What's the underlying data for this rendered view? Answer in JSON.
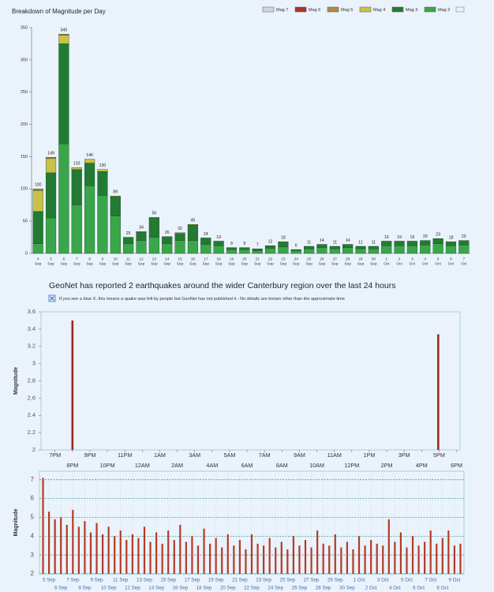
{
  "chart_data": [
    {
      "type": "bar",
      "stacked": true,
      "title": "Breakdown of Magnitude per Day",
      "categories": [
        [
          "4",
          "Sep"
        ],
        [
          "5",
          "Sep"
        ],
        [
          "6",
          "Sep"
        ],
        [
          "7",
          "Sep"
        ],
        [
          "8",
          "Sep"
        ],
        [
          "9",
          "Sep"
        ],
        [
          "10",
          "Sep"
        ],
        [
          "11",
          "Sep"
        ],
        [
          "12",
          "Sep"
        ],
        [
          "13",
          "Sep"
        ],
        [
          "14",
          "Sep"
        ],
        [
          "15",
          "Sep"
        ],
        [
          "16",
          "Sep"
        ],
        [
          "17",
          "Sep"
        ],
        [
          "18",
          "Sep"
        ],
        [
          "19",
          "Sep"
        ],
        [
          "20",
          "Sep"
        ],
        [
          "21",
          "Sep"
        ],
        [
          "22",
          "Sep"
        ],
        [
          "23",
          "Sep"
        ],
        [
          "24",
          "Sep"
        ],
        [
          "25",
          "Sep"
        ],
        [
          "26",
          "Sep"
        ],
        [
          "27",
          "Sep"
        ],
        [
          "28",
          "Sep"
        ],
        [
          "29",
          "Sep"
        ],
        [
          "30",
          "Sep"
        ],
        [
          "1",
          "Oct"
        ],
        [
          "2",
          "Oct"
        ],
        [
          "3",
          "Oct"
        ],
        [
          "4",
          "Oct"
        ],
        [
          "5",
          "Oct"
        ],
        [
          "6",
          "Oct"
        ],
        [
          "7",
          "Oct"
        ]
      ],
      "series": [
        {
          "name": "Mag 2",
          "color": "#3aa64a",
          "values": [
            15,
            55,
            170,
            75,
            105,
            90,
            58,
            15,
            20,
            25,
            15,
            20,
            20,
            14,
            12,
            6,
            6,
            4,
            8,
            10,
            4,
            7,
            9,
            7,
            9,
            7,
            7,
            12,
            12,
            12,
            13,
            15,
            12,
            13
          ]
        },
        {
          "name": "Mag 3",
          "color": "#237a33",
          "values": [
            50,
            70,
            155,
            55,
            35,
            37,
            30,
            10,
            13,
            30,
            11,
            11,
            24,
            10,
            7,
            3,
            3,
            3,
            4,
            8,
            2,
            4,
            5,
            4,
            5,
            4,
            4,
            7,
            7,
            7,
            7,
            8,
            6,
            7
          ]
        },
        {
          "name": "Mag 4",
          "color": "#c9c24a",
          "values": [
            32,
            22,
            13,
            3,
            6,
            3,
            1,
            0,
            1,
            1,
            0,
            1,
            1,
            0,
            0,
            0,
            0,
            0,
            0,
            0,
            0,
            0,
            0,
            0,
            0,
            0,
            0,
            0,
            0,
            0,
            0,
            0,
            0,
            0
          ]
        },
        {
          "name": "Mag 5",
          "color": "#b08a3c",
          "values": [
            3,
            2,
            2,
            0,
            0,
            0,
            0,
            0,
            0,
            0,
            0,
            0,
            0,
            0,
            0,
            0,
            0,
            0,
            0,
            0,
            0,
            0,
            0,
            0,
            0,
            0,
            0,
            0,
            0,
            0,
            0,
            0,
            0,
            0
          ]
        },
        {
          "name": "Mag 6",
          "color": "#a8352a",
          "values": [
            0,
            0,
            0,
            0,
            0,
            0,
            0,
            0,
            0,
            0,
            0,
            0,
            0,
            0,
            0,
            0,
            0,
            0,
            0,
            0,
            0,
            0,
            0,
            0,
            0,
            0,
            0,
            0,
            0,
            0,
            0,
            0,
            0,
            0
          ]
        },
        {
          "name": "Mag 7",
          "color": "#d4d8dc",
          "values": [
            0,
            0,
            0,
            0,
            0,
            0,
            0,
            0,
            0,
            0,
            0,
            0,
            0,
            0,
            0,
            0,
            0,
            0,
            0,
            0,
            0,
            0,
            0,
            0,
            0,
            0,
            0,
            0,
            0,
            0,
            0,
            0,
            0,
            0
          ]
        }
      ],
      "totals": [
        100,
        149,
        340,
        133,
        146,
        130,
        89,
        25,
        34,
        56,
        26,
        32,
        45,
        24,
        19,
        9,
        9,
        7,
        12,
        18,
        6,
        11,
        14,
        11,
        14,
        11,
        11,
        19,
        19,
        19,
        20,
        23,
        18,
        20
      ],
      "ylim": [
        0,
        350
      ],
      "yticks": [
        0,
        50,
        100,
        150,
        200,
        250,
        300,
        350
      ],
      "legend": "top-right"
    },
    {
      "type": "spike",
      "title": "GeoNet has reported 2 earthquakes around the wider Canterbury region over the last 24 hours",
      "note": "If you see a blue X, this means a quake was felt by people but GeoNet has not published it - No details are known other than the approximate time",
      "ylabel": "Magnitude",
      "color": "#a0281e",
      "x": [
        20.0,
        40.95
      ],
      "values": [
        3.5,
        3.34
      ],
      "xlim": [
        18.2,
        42.2
      ],
      "ylim": [
        2,
        3.6
      ],
      "yticks": [
        2,
        2.2,
        2.4,
        2.6,
        2.8,
        3,
        3.2,
        3.4,
        3.6
      ],
      "xticks": [
        {
          "value": 19,
          "label": "7PM"
        },
        {
          "value": 20,
          "label": "8PM"
        },
        {
          "value": 21,
          "label": "9PM"
        },
        {
          "value": 22,
          "label": "10PM"
        },
        {
          "value": 23,
          "label": "11PM"
        },
        {
          "value": 24,
          "label": "12AM"
        },
        {
          "value": 25,
          "label": "1AM"
        },
        {
          "value": 26,
          "label": "2AM"
        },
        {
          "value": 27,
          "label": "3AM"
        },
        {
          "value": 28,
          "label": "4AM"
        },
        {
          "value": 29,
          "label": "5AM"
        },
        {
          "value": 30,
          "label": "6AM"
        },
        {
          "value": 31,
          "label": "7AM"
        },
        {
          "value": 32,
          "label": "8AM"
        },
        {
          "value": 33,
          "label": "9AM"
        },
        {
          "value": 34,
          "label": "10AM"
        },
        {
          "value": 35,
          "label": "11AM"
        },
        {
          "value": 36,
          "label": "12PM"
        },
        {
          "value": 37,
          "label": "1PM"
        },
        {
          "value": 38,
          "label": "2PM"
        },
        {
          "value": 39,
          "label": "3PM"
        },
        {
          "value": 40,
          "label": "4PM"
        },
        {
          "value": 41,
          "label": "5PM"
        },
        {
          "value": 42,
          "label": "6PM"
        }
      ],
      "grid": false
    },
    {
      "type": "spike",
      "ylabel": "Magnitude",
      "color": "#b53a22",
      "x": [
        4.5,
        5,
        5.5,
        6,
        6.5,
        7,
        7.5,
        8,
        8.5,
        9,
        9.5,
        10,
        10.5,
        11,
        11.5,
        12,
        12.5,
        13,
        13.5,
        14,
        14.5,
        15,
        15.5,
        16,
        16.5,
        17,
        17.5,
        18,
        18.5,
        19,
        19.5,
        20,
        20.5,
        21,
        21.5,
        22,
        22.5,
        23,
        23.5,
        24,
        24.5,
        25,
        25.5,
        26,
        26.5,
        27,
        27.5,
        28,
        28.5,
        29,
        29.5,
        30,
        30.5,
        31,
        31.5,
        32,
        32.5,
        33,
        33.5,
        34,
        34.5,
        35,
        35.5,
        36,
        36.5,
        37,
        37.5,
        38,
        38.5,
        39,
        39.5
      ],
      "values": [
        7.1,
        5.3,
        4.9,
        5.0,
        4.6,
        5.4,
        4.5,
        4.8,
        4.2,
        4.7,
        4.1,
        4.5,
        4.0,
        4.3,
        3.8,
        4.1,
        3.9,
        4.5,
        3.7,
        4.2,
        3.6,
        4.3,
        3.8,
        4.6,
        3.7,
        4.0,
        3.5,
        4.4,
        3.6,
        3.9,
        3.4,
        4.1,
        3.5,
        3.8,
        3.3,
        4.1,
        3.6,
        3.5,
        3.9,
        3.4,
        3.7,
        3.3,
        4.0,
        3.5,
        3.8,
        3.4,
        4.3,
        3.6,
        3.5,
        4.1,
        3.4,
        3.7,
        3.3,
        4.0,
        3.5,
        3.8,
        3.6,
        3.5,
        4.9,
        3.7,
        4.2,
        3.4,
        4.0,
        3.5,
        3.7,
        4.3,
        3.6,
        3.9,
        4.3,
        3.5,
        3.6
      ],
      "xlim": [
        4.2,
        39.8
      ],
      "ylim": [
        2,
        7.45
      ],
      "yticks": [
        2,
        3,
        4,
        5,
        6,
        7
      ],
      "xticks": [
        {
          "value": 5,
          "label": "5 Sep"
        },
        {
          "value": 6,
          "label": "6 Sep"
        },
        {
          "value": 7,
          "label": "7 Sep"
        },
        {
          "value": 8,
          "label": "8 Sep"
        },
        {
          "value": 9,
          "label": "9 Sep"
        },
        {
          "value": 10,
          "label": "10 Sep"
        },
        {
          "value": 11,
          "label": "11 Sep"
        },
        {
          "value": 12,
          "label": "12 Sep"
        },
        {
          "value": 13,
          "label": "13 Sep"
        },
        {
          "value": 14,
          "label": "14 Sep"
        },
        {
          "value": 15,
          "label": "15 Sep"
        },
        {
          "value": 16,
          "label": "16 Sep"
        },
        {
          "value": 17,
          "label": "17 Sep"
        },
        {
          "value": 18,
          "label": "18 Sep"
        },
        {
          "value": 19,
          "label": "19 Sep"
        },
        {
          "value": 20,
          "label": "20 Sep"
        },
        {
          "value": 21,
          "label": "21 Sep"
        },
        {
          "value": 22,
          "label": "22 Sep"
        },
        {
          "value": 23,
          "label": "23 Sep"
        },
        {
          "value": 24,
          "label": "24 Sep"
        },
        {
          "value": 25,
          "label": "25 Sep"
        },
        {
          "value": 26,
          "label": "26 Sep"
        },
        {
          "value": 27,
          "label": "27 Sep"
        },
        {
          "value": 28,
          "label": "28 Sep"
        },
        {
          "value": 29,
          "label": "29 Sep"
        },
        {
          "value": 30,
          "label": "30 Sep"
        },
        {
          "value": 31,
          "label": "1 Oct"
        },
        {
          "value": 32,
          "label": "2 Oct"
        },
        {
          "value": 33,
          "label": "3 Oct"
        },
        {
          "value": 34,
          "label": "4 Oct"
        },
        {
          "value": 35,
          "label": "5 Oct"
        },
        {
          "value": 36,
          "label": "6 Oct"
        },
        {
          "value": 37,
          "label": "7 Oct"
        },
        {
          "value": 38,
          "label": "8 Oct"
        },
        {
          "value": 39,
          "label": "9 Oct"
        }
      ],
      "grid": true
    }
  ]
}
